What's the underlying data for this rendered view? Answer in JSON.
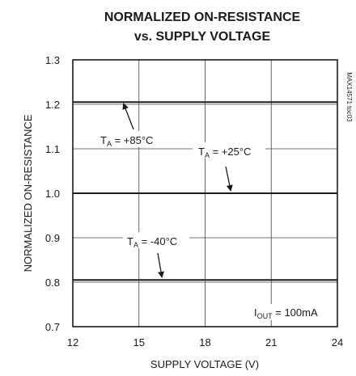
{
  "chart_data": {
    "type": "line",
    "title_line1": "NORMALIZED ON-RESISTANCE",
    "title_line2": "vs. SUPPLY VOLTAGE",
    "xlabel": "SUPPLY VOLTAGE (V)",
    "ylabel": "NORMALIZED ON-RESISTANCE",
    "xlim": [
      12,
      24
    ],
    "ylim": [
      0.7,
      1.3
    ],
    "xticks": [
      "12",
      "15",
      "18",
      "21",
      "24"
    ],
    "yticks": [
      "1.3",
      "1.2",
      "1.1",
      "1.0",
      "0.9",
      "0.8",
      "0.7"
    ],
    "grid": true,
    "series": [
      {
        "name": "TA = +85°C",
        "x": [
          12,
          24
        ],
        "y": [
          1.205,
          1.205
        ]
      },
      {
        "name": "TA = +25°C",
        "x": [
          12,
          24
        ],
        "y": [
          1.0,
          1.0
        ]
      },
      {
        "name": "TA = -40°C",
        "x": [
          12,
          24
        ],
        "y": [
          0.805,
          0.805
        ]
      }
    ],
    "annotations": {
      "t85_prefix": "T",
      "t85_sub": "A",
      "t85_suffix": " = +85°C",
      "t25_prefix": "T",
      "t25_sub": "A",
      "t25_suffix": " = +25°C",
      "tm40_prefix": "T",
      "tm40_sub": "A",
      "tm40_suffix": " = -40°C",
      "iout_prefix": "I",
      "iout_sub": "OUT",
      "iout_suffix": " = 100mA"
    },
    "figure_code": "MAX14571 toc03"
  }
}
